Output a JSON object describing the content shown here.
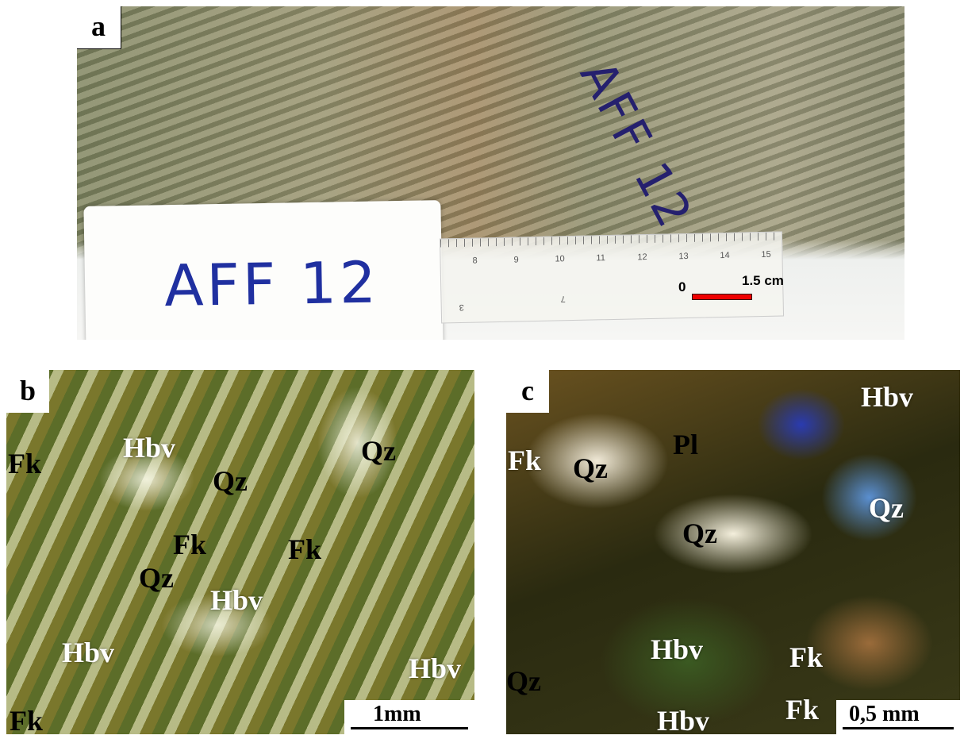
{
  "panels": [
    {
      "label": "a",
      "card_text": "AFF 12",
      "core_text": "AFF 12",
      "ruler_ticks": [
        "8",
        "9",
        "10",
        "11",
        "12",
        "13",
        "14",
        "15"
      ],
      "ruler_lower_ticks": [
        "3",
        "7"
      ],
      "scale_bar": {
        "start": "0",
        "end": "1.5 cm"
      }
    },
    {
      "label": "b",
      "annotations": [
        "Fk",
        "Hbv",
        "Qz",
        "Qz",
        "Fk",
        "Fk",
        "Qz",
        "Hbv",
        "Hbv",
        "Hbv",
        "Fk"
      ],
      "scale_bar": "1mm"
    },
    {
      "label": "c",
      "annotations": [
        "Fk",
        "Qz",
        "Pl",
        "Hbv",
        "Qz",
        "Qz",
        "Hbv",
        "Fk",
        "Qz",
        "Hbv",
        "Fk"
      ],
      "scale_bar": "0,5 mm"
    }
  ]
}
